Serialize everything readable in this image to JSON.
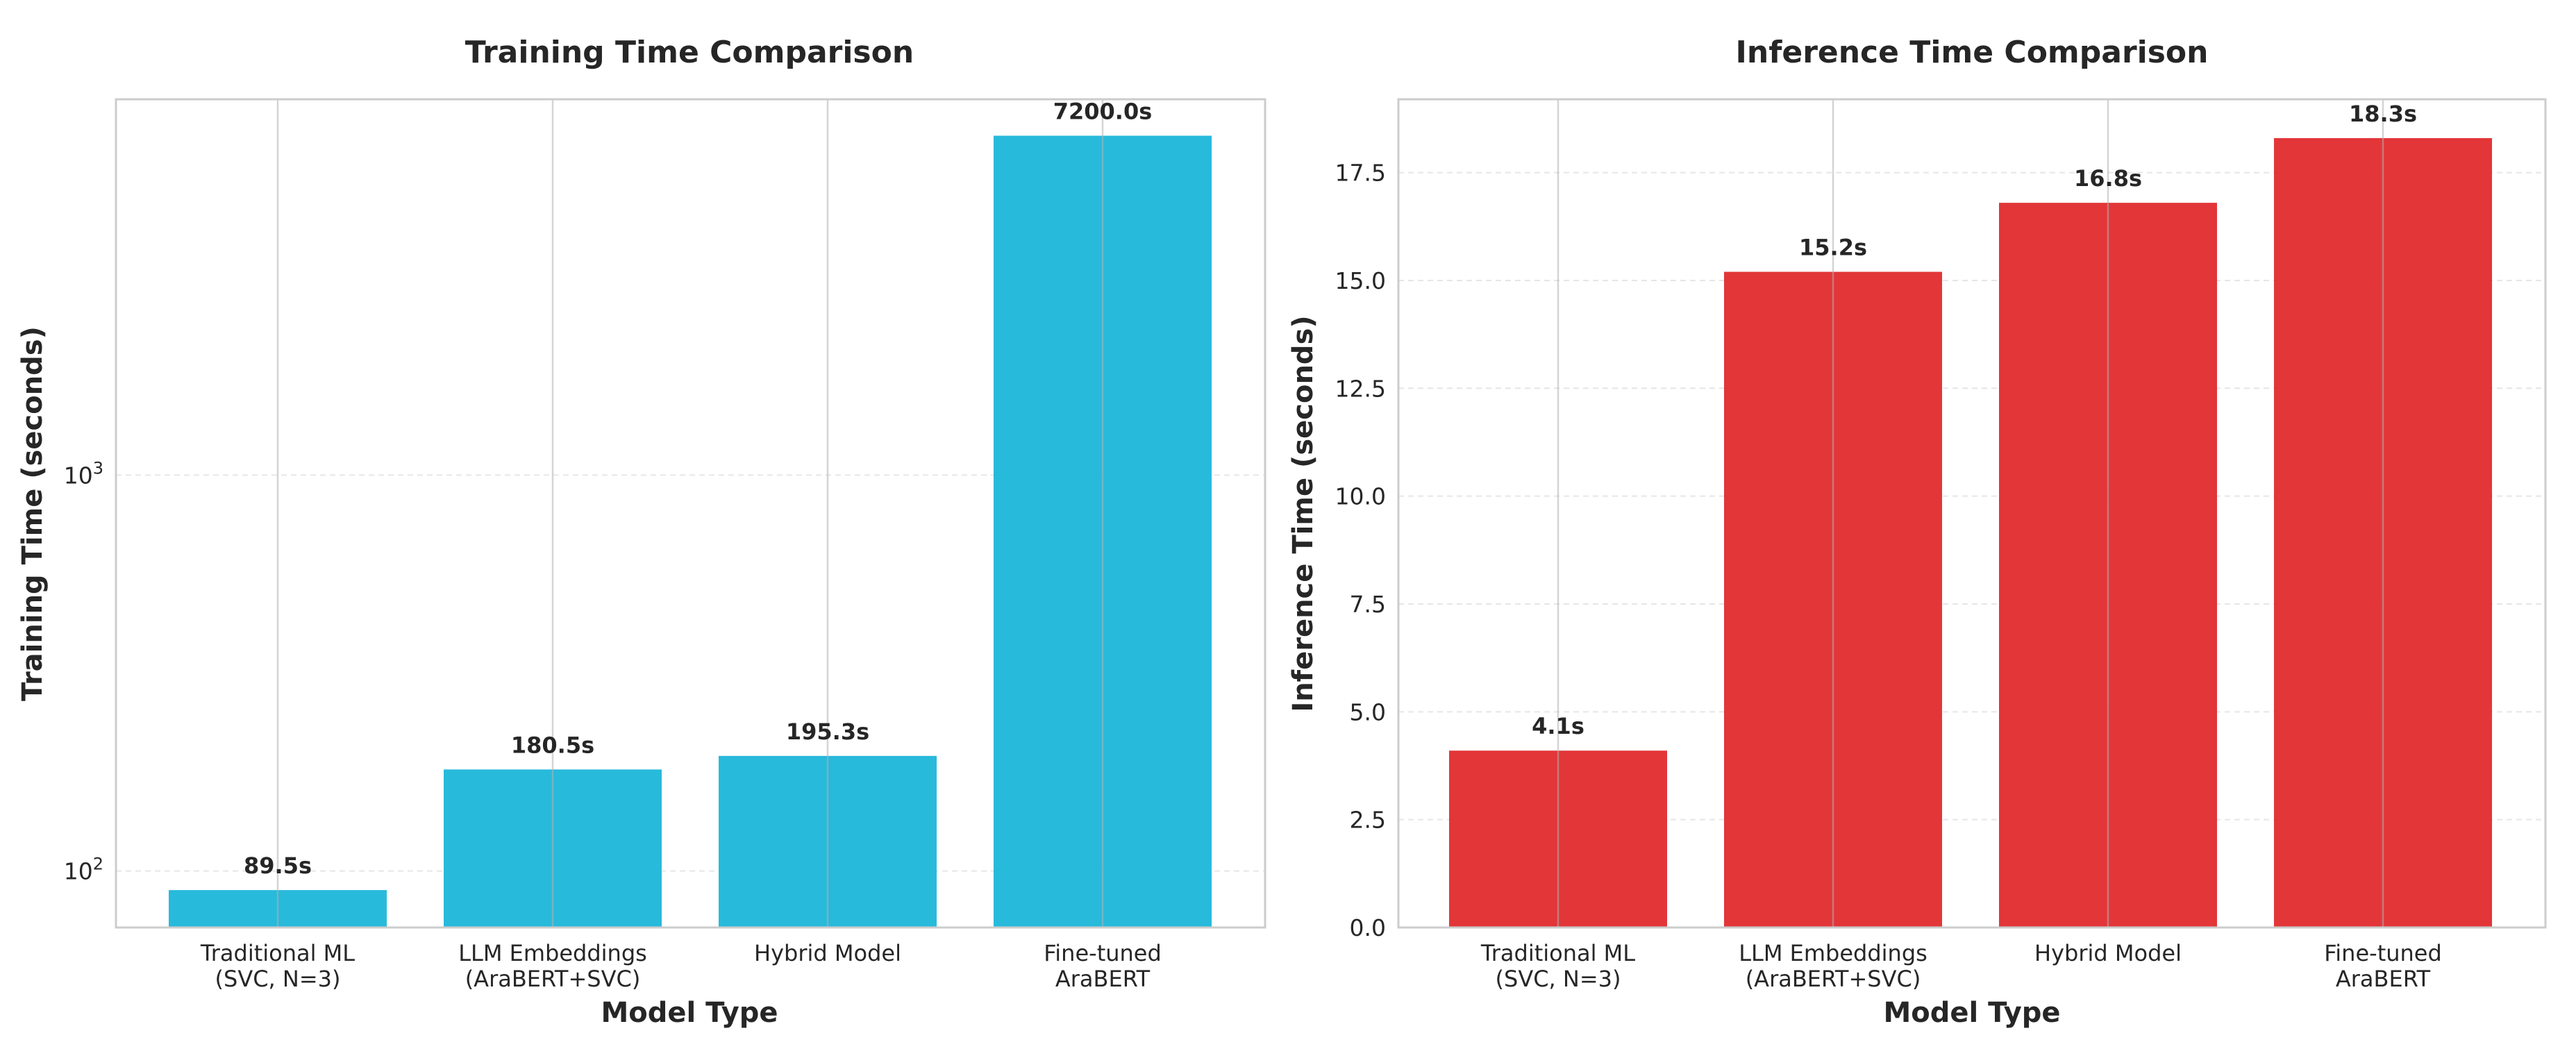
{
  "chart_data": [
    {
      "type": "bar",
      "title": "Training Time Comparison",
      "xlabel": "Model Type",
      "ylabel": "Training Time (seconds)",
      "yscale": "log",
      "ylim": [
        72,
        8900
      ],
      "yticks": [
        100,
        1000
      ],
      "ytick_labels": [
        {
          "base": "10",
          "exp": "2"
        },
        {
          "base": "10",
          "exp": "3"
        }
      ],
      "categories": [
        [
          "Traditional ML",
          "(SVC, N=3)"
        ],
        [
          "LLM Embeddings",
          "(AraBERT+SVC)"
        ],
        [
          "Hybrid Model"
        ],
        [
          "Fine-tuned",
          "AraBERT"
        ]
      ],
      "values": [
        89.5,
        180.5,
        195.3,
        7200.0
      ],
      "value_labels": [
        "89.5s",
        "180.5s",
        "195.3s",
        "7200.0s"
      ],
      "color": "#1cb6d9",
      "grid": true,
      "legend": "none"
    },
    {
      "type": "bar",
      "title": "Inference Time Comparison",
      "xlabel": "Model Type",
      "ylabel": "Inference Time (seconds)",
      "yscale": "linear",
      "ylim": [
        0,
        19.2
      ],
      "yticks": [
        0,
        2.5,
        5,
        7.5,
        10,
        12.5,
        15,
        17.5
      ],
      "ytick_labels": [
        "0.0",
        "2.5",
        "5.0",
        "7.5",
        "10.0",
        "12.5",
        "15.0",
        "17.5"
      ],
      "categories": [
        [
          "Traditional ML",
          "(SVC, N=3)"
        ],
        [
          "LLM Embeddings",
          "(AraBERT+SVC)"
        ],
        [
          "Hybrid Model"
        ],
        [
          "Fine-tuned",
          "AraBERT"
        ]
      ],
      "values": [
        4.1,
        15.2,
        16.8,
        18.3
      ],
      "value_labels": [
        "4.1s",
        "15.2s",
        "16.8s",
        "18.3s"
      ],
      "color": "#e02b2e",
      "grid": true,
      "legend": "none"
    }
  ]
}
